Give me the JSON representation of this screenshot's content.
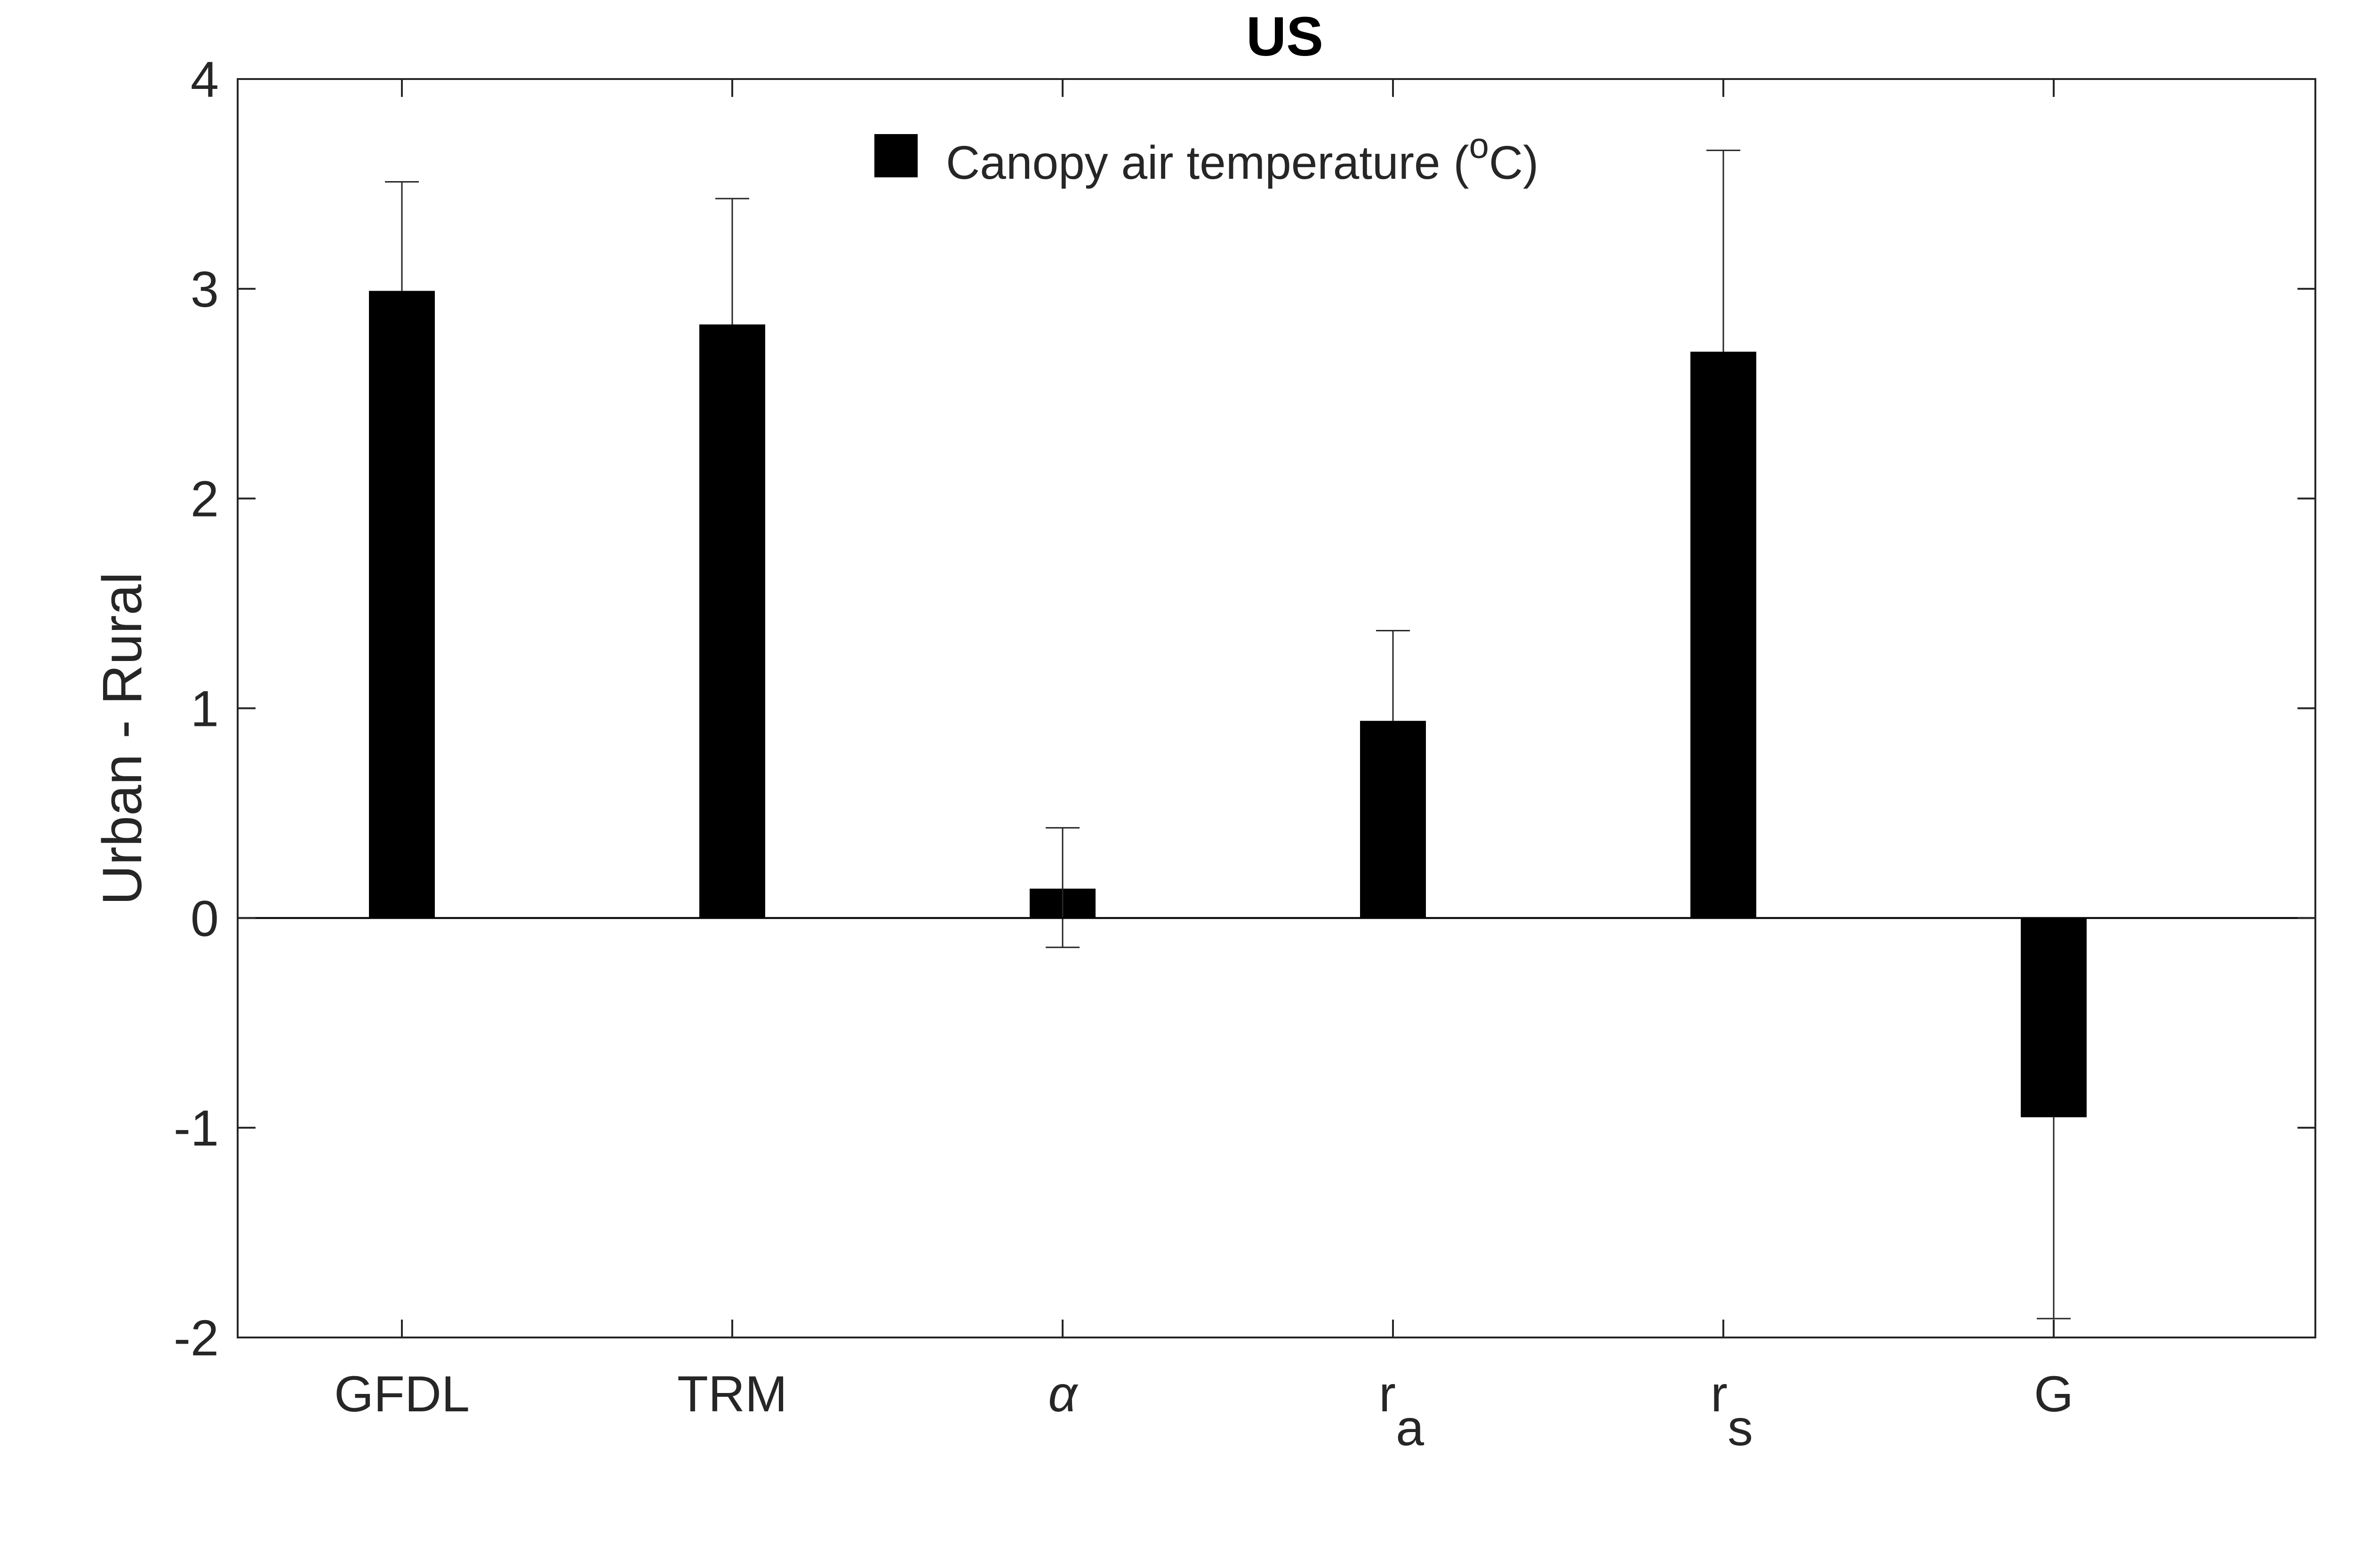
{
  "chart_data": {
    "type": "bar",
    "title": "US",
    "ylabel": "Urban - Rural",
    "xlabel": "",
    "ylim": [
      -2,
      4
    ],
    "yticks": [
      -2,
      -1,
      0,
      1,
      2,
      3,
      4
    ],
    "categories": [
      {
        "main": "GFDL",
        "sub": ""
      },
      {
        "main": "TRM",
        "sub": ""
      },
      {
        "main": "α",
        "sub": ""
      },
      {
        "main": "r",
        "sub": "a"
      },
      {
        "main": "r",
        "sub": "s"
      },
      {
        "main": "G",
        "sub": ""
      }
    ],
    "series": [
      {
        "legend_text": "Canopy air temperature (",
        "legend_sup": "o",
        "legend_unit": "C)",
        "color": "#000000",
        "values": [
          2.99,
          2.83,
          0.14,
          0.94,
          2.7,
          -0.95
        ],
        "err_high": [
          3.51,
          3.43,
          0.43,
          1.37,
          3.66,
          -0.95
        ],
        "err_low": [
          2.99,
          2.83,
          -0.14,
          0.94,
          2.7,
          -1.91
        ]
      }
    ],
    "grid": false,
    "legend_position": "top-center"
  }
}
